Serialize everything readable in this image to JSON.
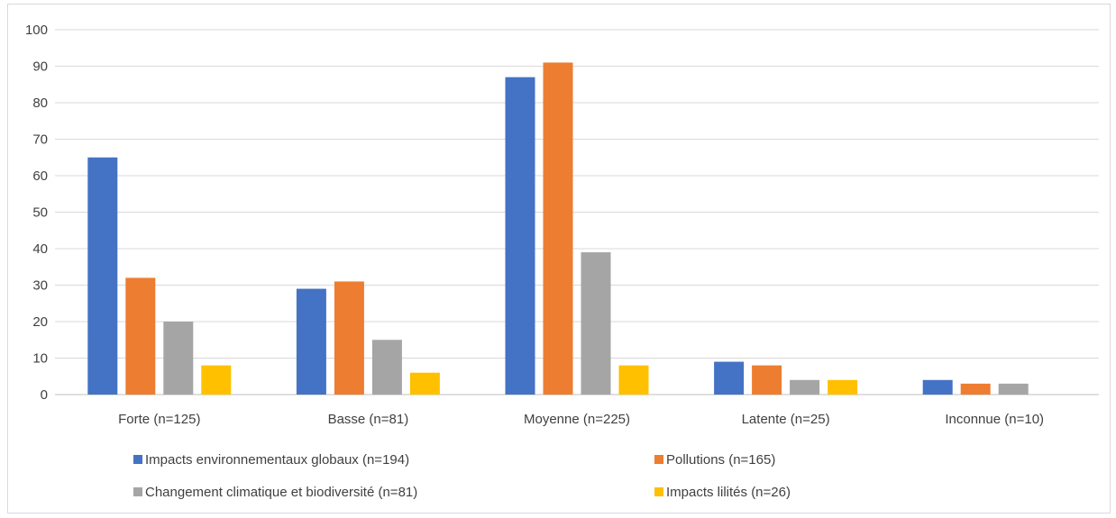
{
  "chart_data": {
    "type": "bar",
    "title": "",
    "xlabel": "",
    "ylabel": "",
    "categories": [
      "Forte (n=125)",
      "Basse (n=81)",
      "Moyenne (n=225)",
      "Latente (n=25)",
      "Inconnue (n=10)"
    ],
    "series": [
      {
        "name": "Impacts environnementaux globaux (n=194)",
        "values": [
          65,
          29,
          87,
          9,
          4
        ],
        "color": "#4472C4"
      },
      {
        "name": "Pollutions (n=165)",
        "values": [
          32,
          31,
          91,
          8,
          3
        ],
        "color": "#ED7D31"
      },
      {
        "name": "Changement climatique et biodiversité (n=81)",
        "values": [
          20,
          15,
          39,
          4,
          3
        ],
        "color": "#A5A5A5"
      },
      {
        "name": "Impacts lilités (n=26)",
        "values": [
          8,
          6,
          8,
          4,
          0
        ],
        "color": "#FFC000"
      }
    ],
    "ylim": [
      0,
      100
    ],
    "yticks": [
      0,
      10,
      20,
      30,
      40,
      50,
      60,
      70,
      80,
      90,
      100
    ],
    "grid": true,
    "legend_position": "bottom"
  }
}
